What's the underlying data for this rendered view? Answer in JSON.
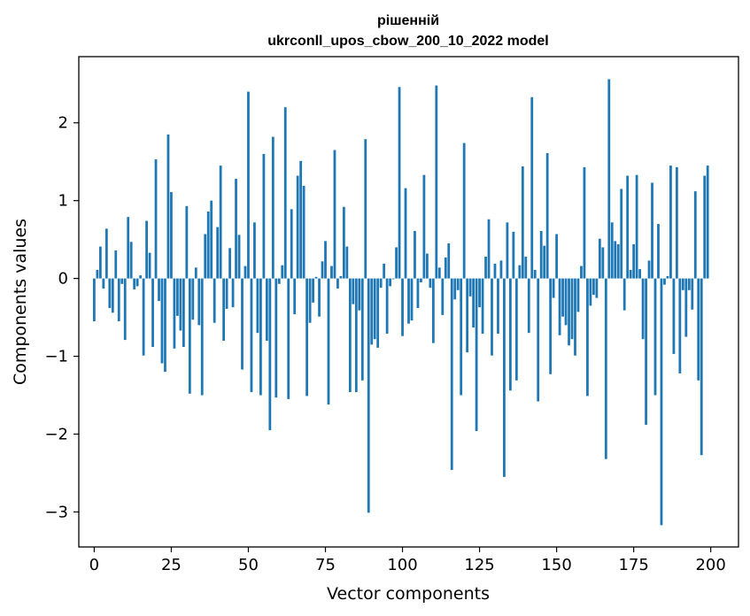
{
  "chart_data": {
    "type": "bar",
    "title": "рішенній",
    "subtitle": "ukrconll_upos_cbow_200_10_2022 model",
    "xlabel": "Vector components",
    "ylabel": "Components values",
    "xlim": [
      -5,
      209
    ],
    "ylim": [
      -3.45,
      2.85
    ],
    "xticks": [
      0,
      25,
      50,
      75,
      100,
      125,
      150,
      175,
      200
    ],
    "xtick_labels": [
      "0",
      "25",
      "50",
      "75",
      "100",
      "125",
      "150",
      "175",
      "200"
    ],
    "yticks": [
      -3,
      -2,
      -1,
      0,
      1,
      2
    ],
    "ytick_labels": [
      "−3",
      "−2",
      "−1",
      "0",
      "1",
      "2"
    ],
    "grid": false,
    "bar_color": "#1f77b4",
    "x": [
      0,
      1,
      2,
      3,
      4,
      5,
      6,
      7,
      8,
      9,
      10,
      11,
      12,
      13,
      14,
      15,
      16,
      17,
      18,
      19,
      20,
      21,
      22,
      23,
      24,
      25,
      26,
      27,
      28,
      29,
      30,
      31,
      32,
      33,
      34,
      35,
      36,
      37,
      38,
      39,
      40,
      41,
      42,
      43,
      44,
      45,
      46,
      47,
      48,
      49,
      50,
      51,
      52,
      53,
      54,
      55,
      56,
      57,
      58,
      59,
      60,
      61,
      62,
      63,
      64,
      65,
      66,
      67,
      68,
      69,
      70,
      71,
      72,
      73,
      74,
      75,
      76,
      77,
      78,
      79,
      80,
      81,
      82,
      83,
      84,
      85,
      86,
      87,
      88,
      89,
      90,
      91,
      92,
      93,
      94,
      95,
      96,
      97,
      98,
      99,
      100,
      101,
      102,
      103,
      104,
      105,
      106,
      107,
      108,
      109,
      110,
      111,
      112,
      113,
      114,
      115,
      116,
      117,
      118,
      119,
      120,
      121,
      122,
      123,
      124,
      125,
      126,
      127,
      128,
      129,
      130,
      131,
      132,
      133,
      134,
      135,
      136,
      137,
      138,
      139,
      140,
      141,
      142,
      143,
      144,
      145,
      146,
      147,
      148,
      149,
      150,
      151,
      152,
      153,
      154,
      155,
      156,
      157,
      158,
      159,
      160,
      161,
      162,
      163,
      164,
      165,
      166,
      167,
      168,
      169,
      170,
      171,
      172,
      173,
      174,
      175,
      176,
      177,
      178,
      179,
      180,
      181,
      182,
      183,
      184,
      185,
      186,
      187,
      188,
      189,
      190,
      191,
      192,
      193,
      194,
      195,
      196,
      197,
      198,
      199
    ],
    "values": [
      -0.55,
      0.11,
      0.41,
      -0.13,
      0.64,
      -0.38,
      -0.44,
      0.36,
      -0.55,
      -0.07,
      -0.79,
      0.79,
      0.47,
      -0.14,
      -0.1,
      0.04,
      -0.99,
      0.74,
      0.33,
      -0.88,
      1.53,
      -0.29,
      -1.09,
      -1.2,
      1.85,
      1.11,
      -0.9,
      -0.48,
      -0.67,
      -0.88,
      0.93,
      -1.48,
      -0.53,
      0.14,
      -0.6,
      -1.5,
      0.57,
      0.86,
      1.0,
      -0.57,
      0.66,
      1.45,
      -0.8,
      -0.39,
      0.39,
      -0.37,
      1.28,
      0.56,
      -1.17,
      0.16,
      2.4,
      -1.46,
      0.72,
      -0.7,
      -1.5,
      1.6,
      -0.8,
      -1.95,
      1.82,
      -1.53,
      -0.07,
      0.17,
      2.2,
      -1.55,
      0.89,
      -0.46,
      1.32,
      1.51,
      1.19,
      -1.51,
      -0.57,
      -0.31,
      0.02,
      -0.49,
      0.22,
      0.48,
      -1.62,
      0.16,
      1.65,
      -0.13,
      0.03,
      0.92,
      0.41,
      -1.46,
      -0.33,
      -1.46,
      -0.41,
      -1.31,
      1.79,
      -3.01,
      -0.85,
      -0.78,
      -0.89,
      -0.12,
      0.19,
      -0.71,
      -0.1,
      -0.01,
      0.4,
      2.46,
      -0.74,
      1.16,
      -0.58,
      -0.54,
      0.61,
      -0.38,
      -0.05,
      1.33,
      0.32,
      -0.12,
      -0.83,
      2.48,
      0.14,
      -0.47,
      0.27,
      0.45,
      -2.46,
      -0.27,
      -0.15,
      -1.5,
      1.74,
      -0.95,
      -0.23,
      -0.63,
      -1.96,
      -0.37,
      -0.71,
      0.28,
      0.76,
      -0.99,
      0.19,
      -0.71,
      0.23,
      -2.55,
      0.72,
      -1.44,
      0.6,
      -1.31,
      0.17,
      1.44,
      0.28,
      -0.7,
      2.33,
      0.11,
      -1.58,
      0.61,
      0.42,
      1.61,
      -1.23,
      -0.25,
      0.57,
      -0.73,
      -0.49,
      -0.6,
      -0.86,
      -0.78,
      -0.99,
      -0.43,
      0.16,
      1.43,
      -1.51,
      -0.35,
      -0.21,
      -0.25,
      0.51,
      0.4,
      -2.32,
      2.56,
      0.72,
      0.48,
      0.44,
      1.15,
      -0.41,
      1.32,
      0.11,
      0.44,
      1.33,
      0.12,
      -0.78,
      -1.88,
      0.23,
      1.23,
      -1.5,
      0.7,
      -3.17,
      -0.08,
      0.03,
      1.45,
      -0.97,
      1.43,
      -1.22,
      -0.15,
      -0.75,
      -0.15,
      -0.4,
      1.12,
      -1.31,
      -2.27,
      1.32,
      1.45
    ]
  }
}
